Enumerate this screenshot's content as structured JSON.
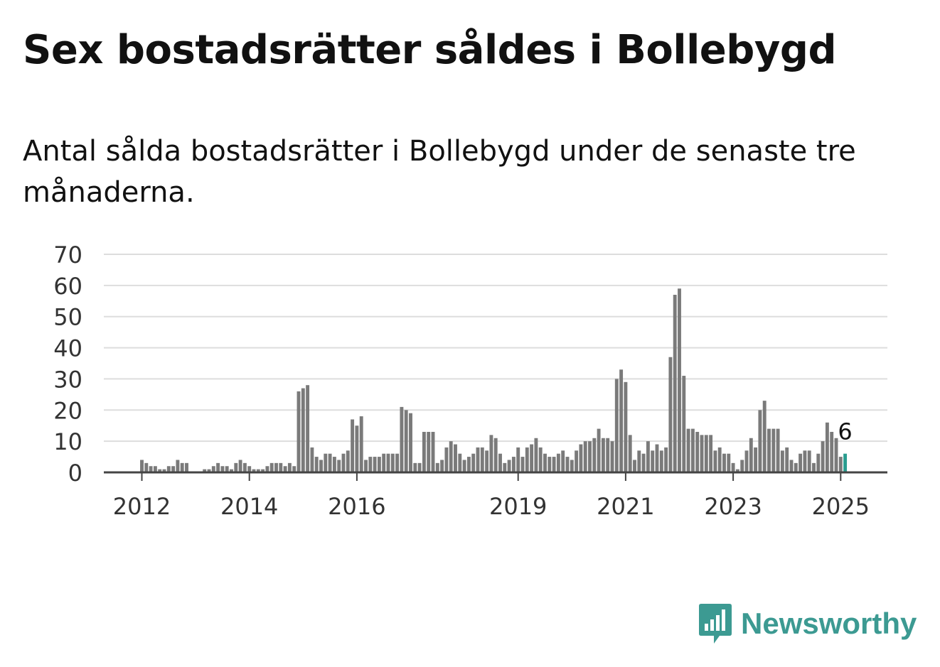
{
  "title": "Sex bostadsrätter såldes i Bollebygd",
  "subtitle": "Antal sålda bostadsrätter i Bollebygd under de senaste tre månaderna.",
  "brand": {
    "name": "Newsworthy",
    "color": "#3c9a92",
    "icon": "bar-chart-speech-bubble-icon"
  },
  "chart_data": {
    "type": "bar",
    "start_month": "2011-01",
    "y_ticks": [
      0,
      10,
      20,
      30,
      40,
      50,
      60,
      70
    ],
    "ylim": [
      0,
      70
    ],
    "x_ticks": [
      "2012",
      "2014",
      "2016",
      "2019",
      "2021",
      "2023",
      "2025"
    ],
    "bar_color": "#7a7a7a",
    "highlight_color": "#2a9d8f",
    "grid": true,
    "annotation": {
      "label": "6"
    },
    "values": [
      0,
      0,
      0,
      0,
      0,
      0,
      0,
      0,
      0,
      0,
      0,
      0,
      4,
      3,
      2,
      2,
      1,
      1,
      2,
      2,
      4,
      3,
      3,
      0,
      0,
      0,
      1,
      1,
      2,
      3,
      2,
      2,
      1,
      3,
      4,
      3,
      2,
      1,
      1,
      1,
      2,
      3,
      3,
      3,
      2,
      3,
      2,
      26,
      27,
      28,
      8,
      5,
      4,
      6,
      6,
      5,
      4,
      6,
      7,
      17,
      15,
      18,
      4,
      5,
      5,
      5,
      6,
      6,
      6,
      6,
      21,
      20,
      19,
      3,
      3,
      13,
      13,
      13,
      3,
      4,
      8,
      10,
      9,
      6,
      4,
      5,
      6,
      8,
      8,
      7,
      12,
      11,
      6,
      3,
      4,
      5,
      8,
      5,
      8,
      9,
      11,
      8,
      6,
      5,
      5,
      6,
      7,
      5,
      4,
      7,
      9,
      10,
      10,
      11,
      14,
      11,
      11,
      10,
      30,
      33,
      29,
      12,
      4,
      7,
      6,
      10,
      7,
      9,
      7,
      8,
      37,
      57,
      59,
      31,
      14,
      14,
      13,
      12,
      12,
      12,
      7,
      8,
      6,
      6,
      3,
      1,
      4,
      7,
      11,
      8,
      20,
      23,
      14,
      14,
      14,
      7,
      8,
      4,
      3,
      6,
      7,
      7,
      3,
      6,
      10,
      16,
      13,
      11,
      5,
      6
    ]
  }
}
